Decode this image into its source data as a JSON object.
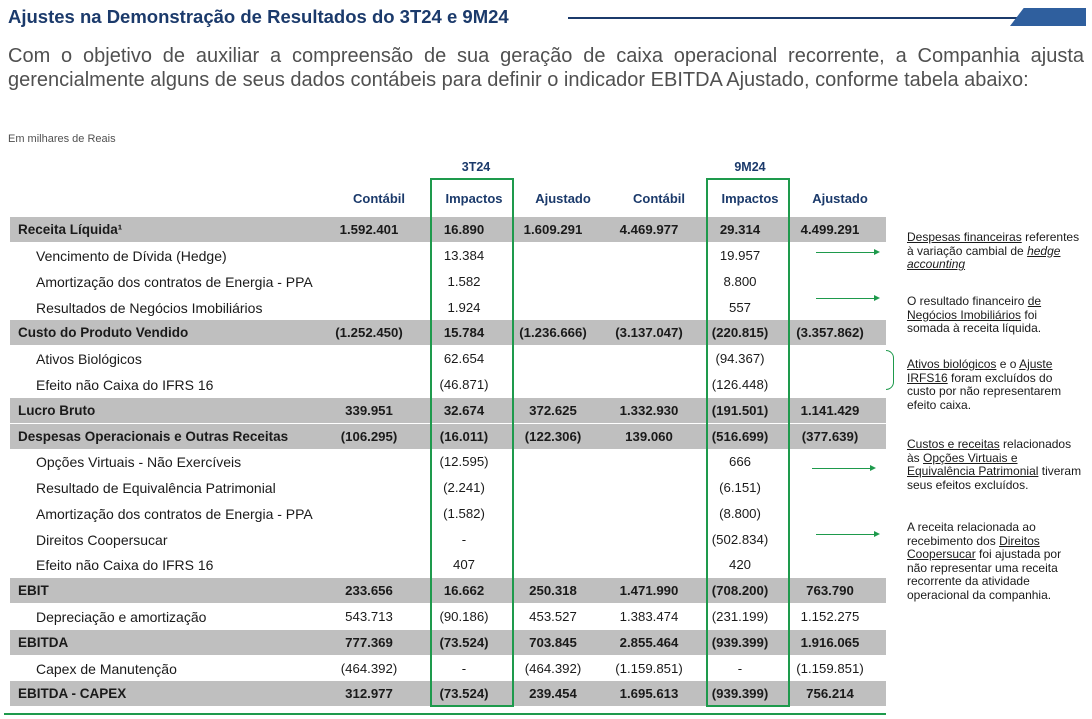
{
  "title": "Ajustes na Demonstração de Resultados do 3T24 e 9M24",
  "intro": "Com o objetivo de auxiliar a compreensão de sua geração de caixa operacional recorrente, a Companhia ajusta gerencialmente alguns de seus dados contábeis para definir o indicador EBITDA Ajustado, conforme tabela abaixo:",
  "units": "Em milhares de Reais",
  "groups": [
    "3T24",
    "9M24"
  ],
  "columns": [
    "Contábil",
    "Impactos",
    "Ajustado",
    "Contábil",
    "Impactos",
    "Ajustado"
  ],
  "rows": [
    {
      "label": "Receita Líquida¹",
      "values": [
        "1.592.401",
        "16.890",
        "1.609.291",
        "4.469.977",
        "29.314",
        "4.499.291"
      ]
    },
    {
      "label": "Vencimento de Dívida (Hedge)",
      "values": [
        "",
        "13.384",
        "",
        "",
        "19.957",
        ""
      ]
    },
    {
      "label": "Amortização dos contratos de Energia - PPA",
      "values": [
        "",
        "1.582",
        "",
        "",
        "8.800",
        ""
      ]
    },
    {
      "label": "Resultados de Negócios Imobiliários",
      "values": [
        "",
        "1.924",
        "",
        "",
        "557",
        ""
      ]
    },
    {
      "label": "Custo do Produto Vendido",
      "values": [
        "(1.252.450)",
        "15.784",
        "(1.236.666)",
        "(3.137.047)",
        "(220.815)",
        "(3.357.862)"
      ]
    },
    {
      "label": "Ativos Biológicos",
      "values": [
        "",
        "62.654",
        "",
        "",
        "(94.367)",
        ""
      ]
    },
    {
      "label": "Efeito não Caixa do IFRS 16",
      "values": [
        "",
        "(46.871)",
        "",
        "",
        "(126.448)",
        ""
      ]
    },
    {
      "label": "Lucro Bruto",
      "values": [
        "339.951",
        "32.674",
        "372.625",
        "1.332.930",
        "(191.501)",
        "1.141.429"
      ]
    },
    {
      "label": "Despesas Operacionais e Outras Receitas",
      "values": [
        "(106.295)",
        "(16.011)",
        "(122.306)",
        "139.060",
        "(516.699)",
        "(377.639)"
      ]
    },
    {
      "label": "Opções Virtuais - Não Exercíveis",
      "values": [
        "",
        "(12.595)",
        "",
        "",
        "666",
        ""
      ]
    },
    {
      "label": "Resultado de Equivalência Patrimonial",
      "values": [
        "",
        "(2.241)",
        "",
        "",
        "(6.151)",
        ""
      ]
    },
    {
      "label": "Amortização dos contratos de Energia - PPA",
      "values": [
        "",
        "(1.582)",
        "",
        "",
        "(8.800)",
        ""
      ]
    },
    {
      "label": "Direitos Coopersucar",
      "values": [
        "",
        "-",
        "",
        "",
        "(502.834)",
        ""
      ]
    },
    {
      "label": "Efeito não Caixa do IFRS 16",
      "values": [
        "",
        "407",
        "",
        "",
        "420",
        ""
      ]
    },
    {
      "label": "EBIT",
      "values": [
        "233.656",
        "16.662",
        "250.318",
        "1.471.990",
        "(708.200)",
        "763.790"
      ]
    },
    {
      "label": "Depreciação e amortização",
      "values": [
        "543.713",
        "(90.186)",
        "453.527",
        "1.383.474",
        "(231.199)",
        "1.152.275"
      ]
    },
    {
      "label": "EBITDA",
      "values": [
        "777.369",
        "(73.524)",
        "703.845",
        "2.855.464",
        "(939.399)",
        "1.916.065"
      ]
    },
    {
      "label": "Capex de Manutenção",
      "values": [
        "(464.392)",
        "-",
        "(464.392)",
        "(1.159.851)",
        "-",
        "(1.159.851)"
      ]
    },
    {
      "label": "EBITDA - CAPEX",
      "values": [
        "312.977",
        "(73.524)",
        "239.454",
        "1.695.613",
        "(939.399)",
        "756.214"
      ]
    }
  ],
  "notes": {
    "n1": {
      "a": "Despesas financeiras",
      "b": " referentes à variação cambial de ",
      "c": "hedge accounting"
    },
    "n2": {
      "a": "O resultado financeiro ",
      "b": "de Negócios Imobiliários",
      "c": " foi somada à receita líquida."
    },
    "n3": {
      "a": "Ativos biológicos",
      "b": " e o ",
      "c": "Ajuste IRFS16",
      "d": " foram excluídos do custo por não representarem efeito caixa."
    },
    "n4": {
      "a": "Custos e receitas",
      "b": " relacionados às ",
      "c": "Opções Virtuais e Equivalência Patrimonial",
      "d": " tiveram seus efeitos excluídos."
    },
    "n5": {
      "a": "A receita relacionada ao recebimento dos ",
      "b": "Direitos Coopersucar",
      "c": " foi ajustada por não representar uma receita recorrente da atividade operacional da companhia."
    }
  },
  "colors": {
    "title": "#1b3a6b",
    "highlight_box": "#1e9a4c",
    "main_row_bg": "#bfbfbf"
  }
}
